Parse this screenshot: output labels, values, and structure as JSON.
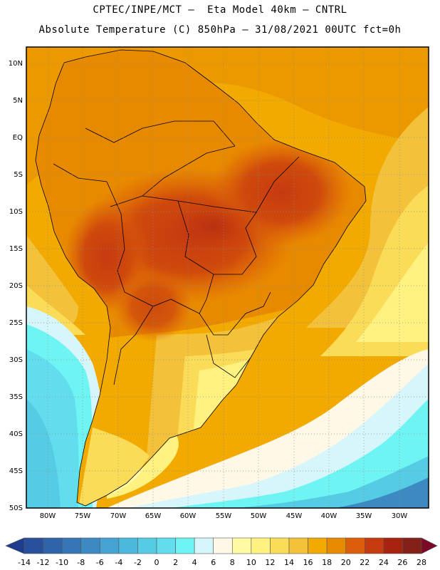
{
  "header": {
    "line1": "CPTEC/INPE/MCT –  Eta Model 40km – CNTRL",
    "line2": "Absolute Temperature (C) 850hPa – 31/08/2021 00UTC fct=0h"
  },
  "map": {
    "lat_labels": [
      "10N",
      "5N",
      "EQ",
      "5S",
      "10S",
      "15S",
      "20S",
      "25S",
      "30S",
      "35S",
      "40S",
      "45S",
      "50S"
    ],
    "lon_labels": [
      "80W",
      "75W",
      "70W",
      "65W",
      "60W",
      "55W",
      "50W",
      "45W",
      "40W",
      "35W",
      "30W"
    ],
    "lat_range": [
      -50,
      10
    ],
    "lon_range": [
      -83,
      -26
    ],
    "gridlines": "dotted"
  },
  "colorbar": {
    "ticks": [
      "-14",
      "-12",
      "-10",
      "-8",
      "-6",
      "-4",
      "-2",
      "0",
      "2",
      "4",
      "6",
      "8",
      "10",
      "12",
      "14",
      "16",
      "18",
      "20",
      "22",
      "24",
      "26",
      "28"
    ],
    "colors": [
      "#1f3c8c",
      "#28509c",
      "#2f63aa",
      "#3776b6",
      "#3d89c2",
      "#45a2d2",
      "#4cb8dc",
      "#55cce4",
      "#62dded",
      "#6ff4f4",
      "#d6f6fb",
      "#fff8e6",
      "#fffaa3",
      "#fff280",
      "#fbdc58",
      "#f3c23a",
      "#f2aa00",
      "#e88a00",
      "#dd5e0a",
      "#c63a10",
      "#a6240e",
      "#832018",
      "#7a0a26"
    ]
  }
}
